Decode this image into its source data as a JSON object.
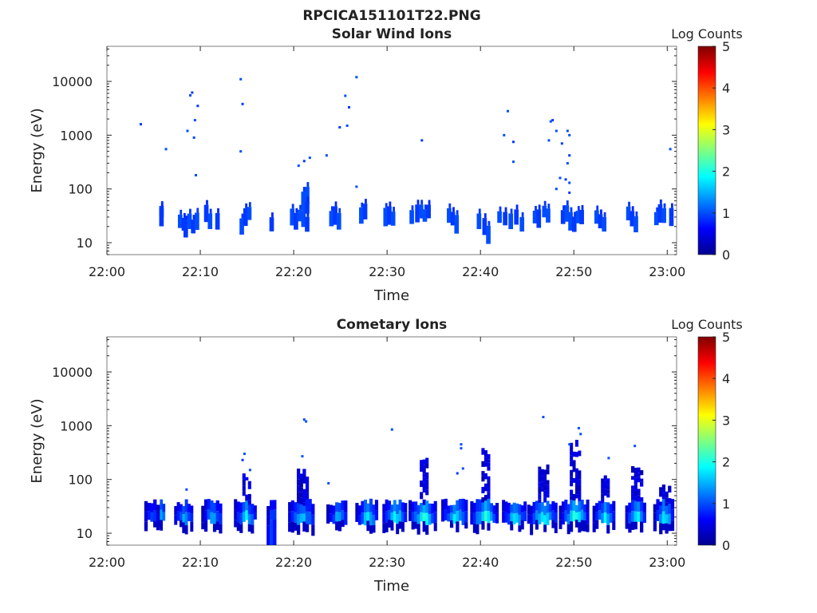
{
  "figure": {
    "suptitle": "RPCICA151101T22.PNG"
  },
  "colorbar": {
    "label": "Log Counts",
    "ticks": [
      "0",
      "1",
      "2",
      "3",
      "4",
      "5"
    ],
    "range": [
      0,
      5
    ],
    "colormap": "jet"
  },
  "chart_data": [
    {
      "type": "heatmap",
      "title": "Solar Wind Ions",
      "xlabel": "Time",
      "ylabel": "Energy (eV)",
      "yscale": "log",
      "ylim": [
        6,
        45000
      ],
      "xlim_min": [
        0,
        61
      ],
      "xticks": [
        "22:00",
        "22:10",
        "22:20",
        "22:30",
        "22:40",
        "22:50",
        "23:00"
      ],
      "yticks": [
        "10",
        "100",
        "1000",
        "10000"
      ],
      "colorbar_range": [
        0,
        5
      ],
      "cells": [
        [
          5.6,
          38,
          1
        ],
        [
          5.6,
          30,
          0.9
        ],
        [
          7.6,
          25,
          1
        ],
        [
          8.0,
          22,
          0.9
        ],
        [
          8.2,
          18,
          0.9
        ],
        [
          8.6,
          25,
          1
        ],
        [
          9.0,
          20,
          0.9
        ],
        [
          9.4,
          25,
          1
        ],
        [
          10.4,
          35,
          0.9
        ],
        [
          10.8,
          25,
          1
        ],
        [
          11.6,
          25,
          0.9
        ],
        [
          14.2,
          20,
          1
        ],
        [
          14.6,
          30,
          0.9
        ],
        [
          15.0,
          35,
          1
        ],
        [
          17.4,
          22,
          0.9
        ],
        [
          19.6,
          30,
          1
        ],
        [
          20.0,
          25,
          0.9
        ],
        [
          20.4,
          32,
          1
        ],
        [
          20.8,
          28,
          1
        ],
        [
          21.2,
          22,
          0.9
        ],
        [
          20.8,
          60,
          1
        ],
        [
          21.2,
          75,
          1
        ],
        [
          21.2,
          45,
          0.9
        ],
        [
          23.8,
          28,
          1
        ],
        [
          24.2,
          32,
          0.9
        ],
        [
          24.6,
          25,
          1
        ],
        [
          27.0,
          32,
          1
        ],
        [
          27.4,
          38,
          0.9
        ],
        [
          29.6,
          30,
          1
        ],
        [
          30.0,
          32,
          0.9
        ],
        [
          30.4,
          28,
          1
        ],
        [
          32.4,
          30,
          1
        ],
        [
          33.0,
          35,
          0.9
        ],
        [
          33.4,
          38,
          1
        ],
        [
          33.8,
          32,
          1
        ],
        [
          34.2,
          38,
          0.9
        ],
        [
          36.4,
          32,
          1
        ],
        [
          36.8,
          28,
          0.9
        ],
        [
          37.2,
          22,
          1
        ],
        [
          39.6,
          25,
          1
        ],
        [
          40.2,
          20,
          0.9
        ],
        [
          40.6,
          14,
          1
        ],
        [
          41.8,
          30,
          1
        ],
        [
          42.4,
          28,
          0.9
        ],
        [
          43.0,
          25,
          1
        ],
        [
          43.6,
          30,
          0.9
        ],
        [
          44.2,
          22,
          1
        ],
        [
          45.6,
          30,
          1
        ],
        [
          46.0,
          28,
          0.9
        ],
        [
          46.6,
          38,
          1
        ],
        [
          47.0,
          32,
          1
        ],
        [
          48.6,
          30,
          0.9
        ],
        [
          49.0,
          35,
          1
        ],
        [
          49.4,
          25,
          1
        ],
        [
          49.8,
          22,
          0.9
        ],
        [
          50.2,
          30,
          1
        ],
        [
          50.6,
          30,
          0.9
        ],
        [
          52.2,
          30,
          1
        ],
        [
          52.6,
          25,
          0.9
        ],
        [
          53.0,
          22,
          1
        ],
        [
          55.6,
          35,
          1
        ],
        [
          56.0,
          28,
          0.9
        ],
        [
          56.4,
          22,
          1
        ],
        [
          58.6,
          28,
          1
        ],
        [
          59.0,
          35,
          0.9
        ],
        [
          59.4,
          32,
          1
        ],
        [
          60.2,
          30,
          0.9
        ]
      ],
      "points": [
        [
          3.5,
          1600,
          0.9
        ],
        [
          6.2,
          550,
          1
        ],
        [
          8.5,
          1200,
          1
        ],
        [
          8.8,
          5500,
          1
        ],
        [
          9.0,
          6200,
          0.9
        ],
        [
          9.2,
          900,
          1
        ],
        [
          9.3,
          1900,
          1
        ],
        [
          9.6,
          3500,
          0.9
        ],
        [
          9.4,
          180,
          1
        ],
        [
          14.2,
          11000,
          1
        ],
        [
          14.4,
          3800,
          0.9
        ],
        [
          14.2,
          500,
          1
        ],
        [
          20.4,
          270,
          1
        ],
        [
          21.0,
          330,
          0.9
        ],
        [
          21.6,
          380,
          1
        ],
        [
          23.4,
          420,
          1
        ],
        [
          24.8,
          1400,
          0.9
        ],
        [
          25.4,
          5400,
          1
        ],
        [
          25.6,
          1500,
          1
        ],
        [
          25.8,
          3300,
          0.9
        ],
        [
          26.6,
          12000,
          1
        ],
        [
          26.6,
          110,
          1
        ],
        [
          33.6,
          800,
          0.9
        ],
        [
          42.4,
          1000,
          1
        ],
        [
          42.8,
          2800,
          1
        ],
        [
          43.4,
          750,
          0.9
        ],
        [
          43.4,
          320,
          1
        ],
        [
          47.4,
          1800,
          1
        ],
        [
          47.6,
          1900,
          0.9
        ],
        [
          47.2,
          800,
          1
        ],
        [
          48.0,
          1200,
          1
        ],
        [
          48.6,
          700,
          0.9
        ],
        [
          49.2,
          1200,
          1
        ],
        [
          49.4,
          1000,
          1
        ],
        [
          49.4,
          420,
          0.9
        ],
        [
          49.2,
          300,
          1
        ],
        [
          48.4,
          160,
          1
        ],
        [
          49.0,
          150,
          0.9
        ],
        [
          49.4,
          130,
          1
        ],
        [
          48.0,
          100,
          1
        ],
        [
          49.4,
          85,
          0.9
        ],
        [
          60.2,
          550,
          1
        ]
      ]
    },
    {
      "type": "heatmap",
      "title": "Cometary Ions",
      "xlabel": "Time",
      "ylabel": "Energy (eV)",
      "yscale": "log",
      "ylim": [
        6,
        45000
      ],
      "xlim_min": [
        0,
        61
      ],
      "xticks": [
        "22:00",
        "22:10",
        "22:20",
        "22:30",
        "22:40",
        "22:50",
        "23:00"
      ],
      "yticks": [
        "10",
        "100",
        "1000",
        "10000"
      ],
      "colorbar_range": [
        0,
        5
      ],
      "bursts": [
        {
          "x": 4.8,
          "w": 1.6,
          "level": 1.1,
          "top": 22
        },
        {
          "x": 5.8,
          "w": 0.8,
          "level": 1.8,
          "top": 45
        },
        {
          "x": 8.2,
          "w": 2.0,
          "level": 1.5,
          "top": 40
        },
        {
          "x": 11.2,
          "w": 2.2,
          "level": 1.4,
          "top": 35
        },
        {
          "x": 14.8,
          "w": 2.4,
          "level": 1.7,
          "top": 110
        },
        {
          "x": 17.6,
          "w": 1.0,
          "level": 1.0,
          "top": 32,
          "deep": true
        },
        {
          "x": 20.8,
          "w": 2.8,
          "level": 1.6,
          "top": 150
        },
        {
          "x": 24.6,
          "w": 2.2,
          "level": 1.5,
          "top": 45
        },
        {
          "x": 27.8,
          "w": 2.4,
          "level": 1.8,
          "top": 48
        },
        {
          "x": 30.8,
          "w": 2.6,
          "level": 1.9,
          "top": 48
        },
        {
          "x": 33.8,
          "w": 3.0,
          "level": 2.1,
          "top": 230
        },
        {
          "x": 37.2,
          "w": 2.8,
          "level": 1.9,
          "top": 48
        },
        {
          "x": 40.4,
          "w": 3.0,
          "level": 2.0,
          "top": 300
        },
        {
          "x": 43.6,
          "w": 2.6,
          "level": 1.8,
          "top": 48
        },
        {
          "x": 46.6,
          "w": 3.2,
          "level": 1.9,
          "top": 160
        },
        {
          "x": 50.0,
          "w": 3.2,
          "level": 2.2,
          "top": 480
        },
        {
          "x": 53.2,
          "w": 2.4,
          "level": 1.8,
          "top": 100
        },
        {
          "x": 56.6,
          "w": 2.2,
          "level": 2.0,
          "top": 140
        },
        {
          "x": 59.6,
          "w": 2.2,
          "level": 1.9,
          "top": 70
        }
      ],
      "points": [
        [
          8.4,
          65,
          1
        ],
        [
          14.6,
          300,
          1
        ],
        [
          14.4,
          230,
          0.9
        ],
        [
          15.2,
          150,
          1
        ],
        [
          21.0,
          1300,
          1
        ],
        [
          21.2,
          1200,
          1
        ],
        [
          20.8,
          270,
          1
        ],
        [
          23.6,
          85,
          1
        ],
        [
          30.4,
          850,
          1
        ],
        [
          37.4,
          130,
          0.9
        ],
        [
          37.8,
          450,
          1
        ],
        [
          37.8,
          380,
          1
        ],
        [
          38.0,
          160,
          1
        ],
        [
          46.6,
          1450,
          1
        ],
        [
          50.4,
          900,
          1
        ],
        [
          50.6,
          700,
          1
        ],
        [
          49.4,
          450,
          1
        ],
        [
          53.6,
          250,
          1
        ],
        [
          56.4,
          420,
          1
        ]
      ]
    }
  ]
}
